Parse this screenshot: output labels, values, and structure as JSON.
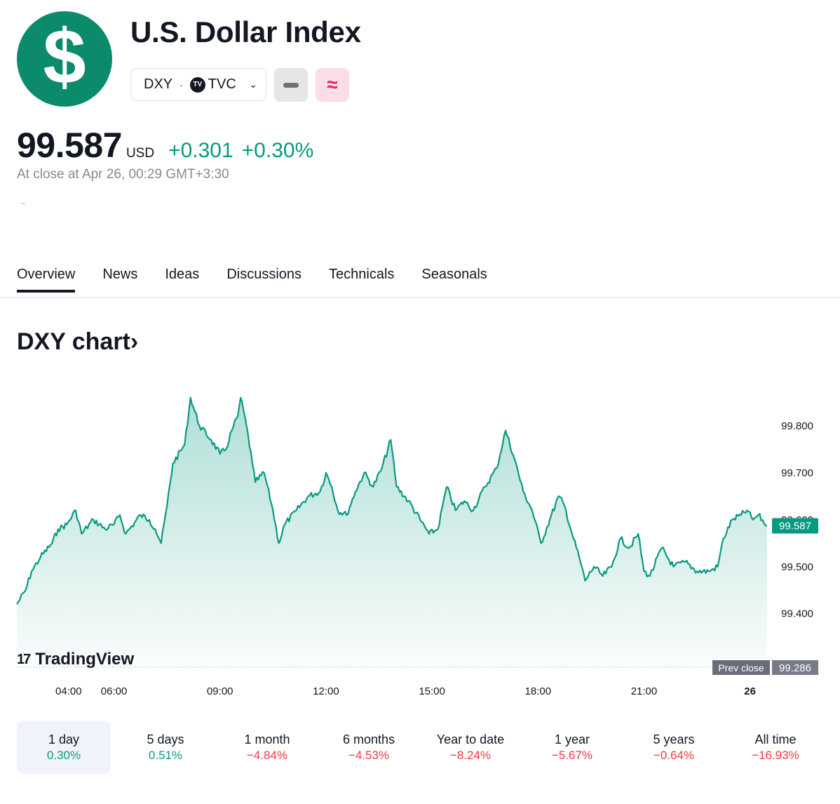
{
  "header": {
    "logo_symbol": "$",
    "title": "U.S. Dollar Index",
    "symbol": "DXY",
    "separator": "·",
    "exchange_mark": "TV",
    "exchange": "TVC",
    "dropdown_icon": "chevron-down-icon",
    "button_minus_icon": "minus-icon",
    "button_approx_icon": "approx-icon",
    "button_approx_label": "≈"
  },
  "quote": {
    "price": "99.587",
    "currency": "USD",
    "change_abs": "+0.301",
    "change_pct": "+0.30%",
    "close_info": "At close at Apr 26, 00:29 GMT+3:30"
  },
  "tabs": [
    {
      "label": "Overview",
      "active": true
    },
    {
      "label": "News"
    },
    {
      "label": "Ideas"
    },
    {
      "label": "Discussions"
    },
    {
      "label": "Technicals"
    },
    {
      "label": "Seasonals"
    }
  ],
  "chart_heading": "DXY chart›",
  "brand": {
    "glyph": "17",
    "text": "TradingView"
  },
  "colors": {
    "accent": "#089981",
    "negative": "#f23645",
    "logo": "#0b8a6c"
  },
  "chart_data": {
    "type": "area",
    "x_labels": [
      "04:00",
      "06:00",
      "09:00",
      "12:00",
      "15:00",
      "18:00",
      "21:00",
      "26"
    ],
    "y_ticks": [
      "99.400",
      "99.500",
      "99.600",
      "99.700",
      "99.800"
    ],
    "ylim": [
      99.286,
      99.9
    ],
    "prev_close_label": "Prev close",
    "prev_close": "99.286",
    "last_label": "99.587",
    "points": [
      [
        "03:15",
        99.42
      ],
      [
        "03:30",
        99.45
      ],
      [
        "03:40",
        99.49
      ],
      [
        "03:55",
        99.52
      ],
      [
        "04:15",
        99.55
      ],
      [
        "04:25",
        99.58
      ],
      [
        "04:40",
        99.59
      ],
      [
        "04:55",
        99.62
      ],
      [
        "05:05",
        99.57
      ],
      [
        "05:25",
        99.6
      ],
      [
        "05:45",
        99.58
      ],
      [
        "06:00",
        99.59
      ],
      [
        "06:10",
        99.61
      ],
      [
        "06:20",
        99.57
      ],
      [
        "06:45",
        99.61
      ],
      [
        "07:00",
        99.6
      ],
      [
        "07:10",
        99.58
      ],
      [
        "07:20",
        99.55
      ],
      [
        "07:30",
        99.63
      ],
      [
        "07:40",
        99.72
      ],
      [
        "08:00",
        99.76
      ],
      [
        "08:10",
        99.86
      ],
      [
        "08:25",
        99.8
      ],
      [
        "08:45",
        99.77
      ],
      [
        "09:00",
        99.74
      ],
      [
        "09:10",
        99.75
      ],
      [
        "09:20",
        99.79
      ],
      [
        "09:30",
        99.82
      ],
      [
        "09:35",
        99.86
      ],
      [
        "09:45",
        99.8
      ],
      [
        "09:55",
        99.72
      ],
      [
        "10:00",
        99.68
      ],
      [
        "10:15",
        99.7
      ],
      [
        "10:30",
        99.62
      ],
      [
        "10:40",
        99.55
      ],
      [
        "10:50",
        99.59
      ],
      [
        "11:10",
        99.62
      ],
      [
        "11:30",
        99.65
      ],
      [
        "11:50",
        99.66
      ],
      [
        "12:00",
        99.7
      ],
      [
        "12:10",
        99.67
      ],
      [
        "12:20",
        99.62
      ],
      [
        "12:35",
        99.61
      ],
      [
        "12:50",
        99.66
      ],
      [
        "13:05",
        99.7
      ],
      [
        "13:20",
        99.67
      ],
      [
        "13:35",
        99.71
      ],
      [
        "13:50",
        99.77
      ],
      [
        "14:00",
        99.67
      ],
      [
        "14:20",
        99.64
      ],
      [
        "14:40",
        99.6
      ],
      [
        "14:55",
        99.57
      ],
      [
        "15:10",
        99.58
      ],
      [
        "15:25",
        99.67
      ],
      [
        "15:40",
        99.62
      ],
      [
        "15:55",
        99.64
      ],
      [
        "16:10",
        99.62
      ],
      [
        "16:30",
        99.67
      ],
      [
        "16:50",
        99.71
      ],
      [
        "17:05",
        99.79
      ],
      [
        "17:20",
        99.73
      ],
      [
        "17:35",
        99.66
      ],
      [
        "17:50",
        99.62
      ],
      [
        "18:05",
        99.55
      ],
      [
        "18:20",
        99.6
      ],
      [
        "18:35",
        99.65
      ],
      [
        "18:45",
        99.63
      ],
      [
        "19:00",
        99.56
      ],
      [
        "19:10",
        99.52
      ],
      [
        "19:20",
        99.47
      ],
      [
        "19:35",
        99.5
      ],
      [
        "19:50",
        99.48
      ],
      [
        "20:05",
        99.5
      ],
      [
        "20:20",
        99.56
      ],
      [
        "20:35",
        99.54
      ],
      [
        "20:50",
        99.57
      ],
      [
        "21:00",
        99.49
      ],
      [
        "21:10",
        99.48
      ],
      [
        "21:30",
        99.54
      ],
      [
        "21:50",
        99.5
      ],
      [
        "22:10",
        99.51
      ],
      [
        "22:30",
        99.49
      ],
      [
        "22:50",
        99.49
      ],
      [
        "23:05",
        99.5
      ],
      [
        "23:15",
        99.56
      ],
      [
        "23:30",
        99.6
      ],
      [
        "23:45",
        99.61
      ],
      [
        "23:55",
        99.62
      ],
      [
        "00:05",
        99.6
      ],
      [
        "00:14",
        99.61
      ],
      [
        "00:29",
        99.587
      ]
    ]
  },
  "ranges": [
    {
      "label": "1 day",
      "pct": "0.30%",
      "dir": "pos",
      "active": true
    },
    {
      "label": "5 days",
      "pct": "0.51%",
      "dir": "pos"
    },
    {
      "label": "1 month",
      "pct": "−4.84%",
      "dir": "neg"
    },
    {
      "label": "6 months",
      "pct": "−4.53%",
      "dir": "neg"
    },
    {
      "label": "Year to date",
      "pct": "−8.24%",
      "dir": "neg"
    },
    {
      "label": "1 year",
      "pct": "−5.67%",
      "dir": "neg"
    },
    {
      "label": "5 years",
      "pct": "−0.64%",
      "dir": "neg"
    },
    {
      "label": "All time",
      "pct": "−16.93%",
      "dir": "neg"
    }
  ]
}
